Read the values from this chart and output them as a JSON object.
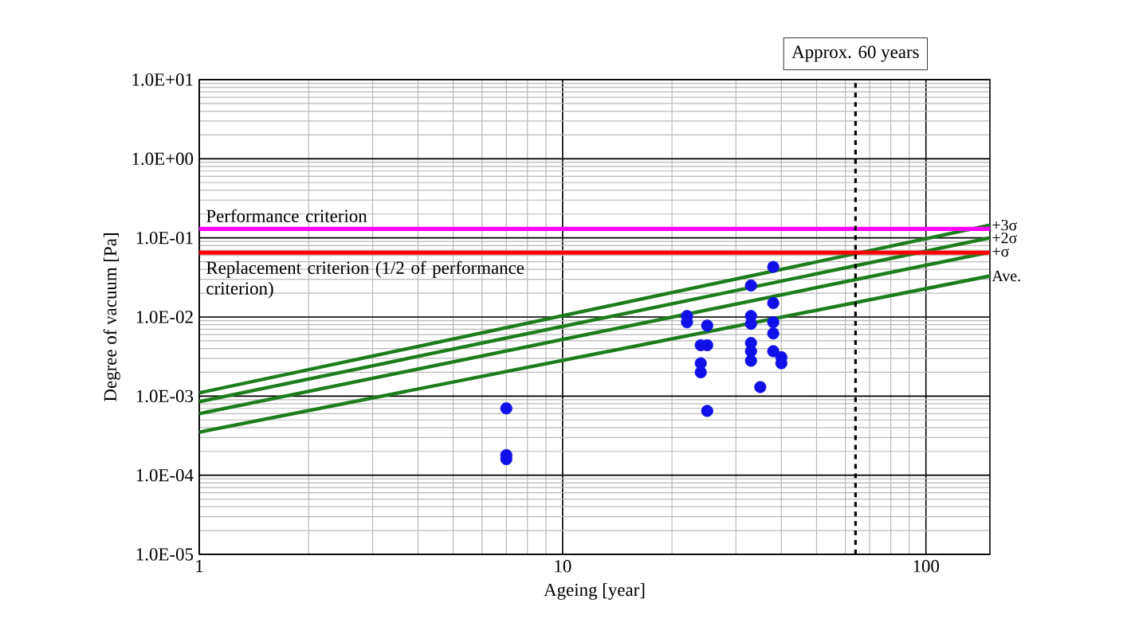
{
  "chart_data": {
    "type": "line",
    "xlabel": "Ageing [year]",
    "ylabel": "Degree of vacuum [Pa]",
    "log": "xy",
    "grid": true,
    "legend": false,
    "xlim": [
      1,
      150
    ],
    "xticks": [
      1,
      10,
      100
    ],
    "ylim": [
      1e-05,
      10
    ],
    "yticks": [
      {
        "value": 1e-05,
        "label": "1.0E-05"
      },
      {
        "value": 0.0001,
        "label": "1.0E-04"
      },
      {
        "value": 0.001,
        "label": "1.0E-03"
      },
      {
        "value": 0.01,
        "label": "1.0E-02"
      },
      {
        "value": 0.1,
        "label": "1.0E-01"
      },
      {
        "value": 1,
        "label": "1.0E+00"
      },
      {
        "value": 10,
        "label": "1.0E+01"
      }
    ],
    "series": [
      {
        "name": "+3σ",
        "color": "#1e7b1e",
        "x": [
          1,
          150
        ],
        "values": [
          0.0011,
          0.145
        ]
      },
      {
        "name": "+2σ",
        "color": "#1e7b1e",
        "x": [
          1,
          150
        ],
        "values": [
          0.00085,
          0.1
        ]
      },
      {
        "name": "+σ",
        "color": "#1e7b1e",
        "x": [
          1,
          150
        ],
        "values": [
          0.0006,
          0.066
        ]
      },
      {
        "name": "Ave.",
        "color": "#1e7b1e",
        "x": [
          1,
          150
        ],
        "values": [
          0.00035,
          0.033
        ]
      },
      {
        "type": "scatter",
        "marker": "circle",
        "color": "#1010e8",
        "x": [
          7,
          7,
          7,
          22,
          22,
          25,
          25,
          25,
          24,
          24,
          24,
          33,
          33,
          33,
          33,
          33,
          33,
          35,
          38,
          38,
          38,
          38,
          38,
          40,
          40
        ],
        "values": [
          0.0007,
          0.00018,
          0.00016,
          0.0103,
          0.0086,
          0.0078,
          0.0044,
          0.00065,
          0.0044,
          0.0026,
          0.002,
          0.025,
          0.0103,
          0.0082,
          0.0047,
          0.0037,
          0.0028,
          0.0013,
          0.043,
          0.015,
          0.0086,
          0.0062,
          0.0037,
          0.0031,
          0.0026
        ]
      }
    ],
    "ref_lines": [
      {
        "axis": "y",
        "value": 0.13,
        "label": "Performance criterion",
        "color": "#ff00ff"
      },
      {
        "axis": "y",
        "value": 0.065,
        "label": "Replacement criterion (1/2 of performance criterion)",
        "color": "#ff0000"
      },
      {
        "axis": "x",
        "value": 64,
        "label": "Approx. 60 years",
        "color": "#000000",
        "line_style": "dashed"
      }
    ]
  }
}
